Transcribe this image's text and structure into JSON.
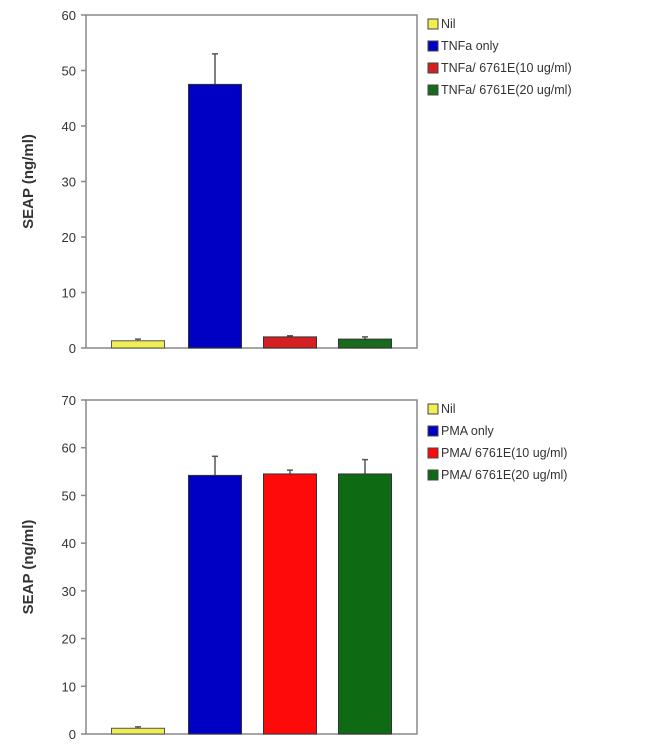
{
  "chart_data": [
    {
      "type": "bar",
      "ylabel": "SEAP (ng/ml)",
      "ylim": [
        0,
        60
      ],
      "yticks": [
        0,
        10,
        20,
        30,
        40,
        50,
        60
      ],
      "grid": false,
      "legend_placement": "right",
      "series": [
        {
          "name": "Nil",
          "value": 1.3,
          "error": 0.3,
          "color": "#f0ee50"
        },
        {
          "name": "TNFa only",
          "value": 47.5,
          "error": 5.5,
          "color": "#0000c4"
        },
        {
          "name": "TNFa/ 6761E(10 ug/ml)",
          "value": 2.0,
          "error": 0.2,
          "color": "#d42020"
        },
        {
          "name": "TNFa/ 6761E(20 ug/ml)",
          "value": 1.6,
          "error": 0.4,
          "color": "#186a1c"
        }
      ]
    },
    {
      "type": "bar",
      "ylabel": "SEAP (ng/ml)",
      "ylim": [
        0,
        70
      ],
      "yticks": [
        0,
        10,
        20,
        30,
        40,
        50,
        60,
        70
      ],
      "grid": false,
      "legend_placement": "right",
      "series": [
        {
          "name": "Nil",
          "value": 1.2,
          "error": 0.3,
          "color": "#f0ee50"
        },
        {
          "name": "PMA only",
          "value": 54.2,
          "error": 4.0,
          "color": "#0000c4"
        },
        {
          "name": "PMA/ 6761E(10 ug/ml)",
          "value": 54.5,
          "error": 0.8,
          "color": "#ff0a0a"
        },
        {
          "name": "PMA/ 6761E(20 ug/ml)",
          "value": 54.5,
          "error": 3.0,
          "color": "#0f6a14"
        }
      ]
    }
  ]
}
